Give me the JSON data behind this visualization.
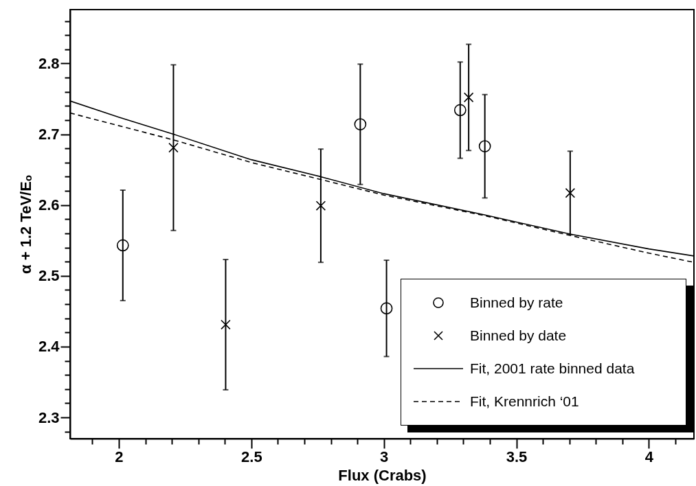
{
  "chart_data": {
    "type": "scatter",
    "xlabel": "Flux (Crabs)",
    "ylabel": "α + 1.2 TeV/Eₒ",
    "xlim": [
      1.816,
      4.17
    ],
    "ylim": [
      2.27,
      2.876
    ],
    "xticks": [
      {
        "value": 1.9,
        "label": null
      },
      2,
      {
        "value": 2.1,
        "label": null
      },
      {
        "value": 2.2,
        "label": null
      },
      {
        "value": 2.3,
        "label": null
      },
      {
        "value": 2.4,
        "label": null
      },
      2.5,
      {
        "value": 2.6,
        "label": null
      },
      {
        "value": 2.7,
        "label": null
      },
      {
        "value": 2.8,
        "label": null
      },
      {
        "value": 2.9,
        "label": null
      },
      3,
      {
        "value": 3.1,
        "label": null
      },
      {
        "value": 3.2,
        "label": null
      },
      {
        "value": 3.3,
        "label": null
      },
      {
        "value": 3.4,
        "label": null
      },
      3.5,
      {
        "value": 3.6,
        "label": null
      },
      {
        "value": 3.7,
        "label": null
      },
      {
        "value": 3.8,
        "label": null
      },
      {
        "value": 3.9,
        "label": null
      },
      4,
      {
        "value": 4.1,
        "label": null
      }
    ],
    "yticks": [
      {
        "value": 2.28,
        "label": null
      },
      2.3,
      {
        "value": 2.32,
        "label": null
      },
      {
        "value": 2.34,
        "label": null
      },
      {
        "value": 2.36,
        "label": null
      },
      {
        "value": 2.38,
        "label": null
      },
      2.4,
      {
        "value": 2.42,
        "label": null
      },
      {
        "value": 2.44,
        "label": null
      },
      {
        "value": 2.46,
        "label": null
      },
      {
        "value": 2.48,
        "label": null
      },
      2.5,
      {
        "value": 2.52,
        "label": null
      },
      {
        "value": 2.54,
        "label": null
      },
      {
        "value": 2.56,
        "label": null
      },
      {
        "value": 2.58,
        "label": null
      },
      2.6,
      {
        "value": 2.62,
        "label": null
      },
      {
        "value": 2.64,
        "label": null
      },
      {
        "value": 2.66,
        "label": null
      },
      {
        "value": 2.68,
        "label": null
      },
      2.7,
      {
        "value": 2.72,
        "label": null
      },
      {
        "value": 2.74,
        "label": null
      },
      {
        "value": 2.76,
        "label": null
      },
      {
        "value": 2.78,
        "label": null
      },
      2.8,
      {
        "value": 2.82,
        "label": null
      },
      {
        "value": 2.84,
        "label": null
      },
      {
        "value": 2.86,
        "label": null
      }
    ],
    "legend": "bottom right",
    "grid": false,
    "series": [
      {
        "name": "Binned by rate",
        "type": "scatter",
        "marker": "circle",
        "color": "#000000",
        "x": [
          2.015,
          2.911,
          3.01,
          3.288,
          3.381
        ],
        "values": [
          2.543,
          2.714,
          2.454,
          2.734,
          2.683
        ],
        "errors": [
          0.078,
          0.085,
          0.068,
          0.068,
          0.073
        ]
      },
      {
        "name": "Binned by date",
        "type": "scatter",
        "marker": "cross",
        "color": "#000000",
        "x": [
          2.206,
          2.403,
          2.762,
          3.32,
          3.703
        ],
        "values": [
          2.681,
          2.431,
          2.599,
          2.752,
          2.617
        ],
        "errors": [
          0.117,
          0.092,
          0.08,
          0.075,
          0.059
        ]
      },
      {
        "name": "Fit, 2001 rate binned data",
        "type": "line",
        "line_style": "solid",
        "color": "#000000",
        "x": [
          1.816,
          2,
          2.206,
          2.5,
          2.762,
          3,
          3.38,
          3.703,
          4,
          4.17
        ],
        "values": [
          2.747,
          2.724,
          2.7,
          2.664,
          2.64,
          2.616,
          2.586,
          2.559,
          2.538,
          2.528
        ]
      },
      {
        "name": "Fit, Krennrich ‘01",
        "type": "line",
        "line_style": "dashed",
        "color": "#000000",
        "x": [
          1.816,
          2,
          2.206,
          2.5,
          2.762,
          3,
          3.38,
          3.703,
          4,
          4.17
        ],
        "values": [
          2.73,
          2.712,
          2.692,
          2.66,
          2.636,
          2.614,
          2.585,
          2.557,
          2.532,
          2.519
        ]
      }
    ]
  }
}
